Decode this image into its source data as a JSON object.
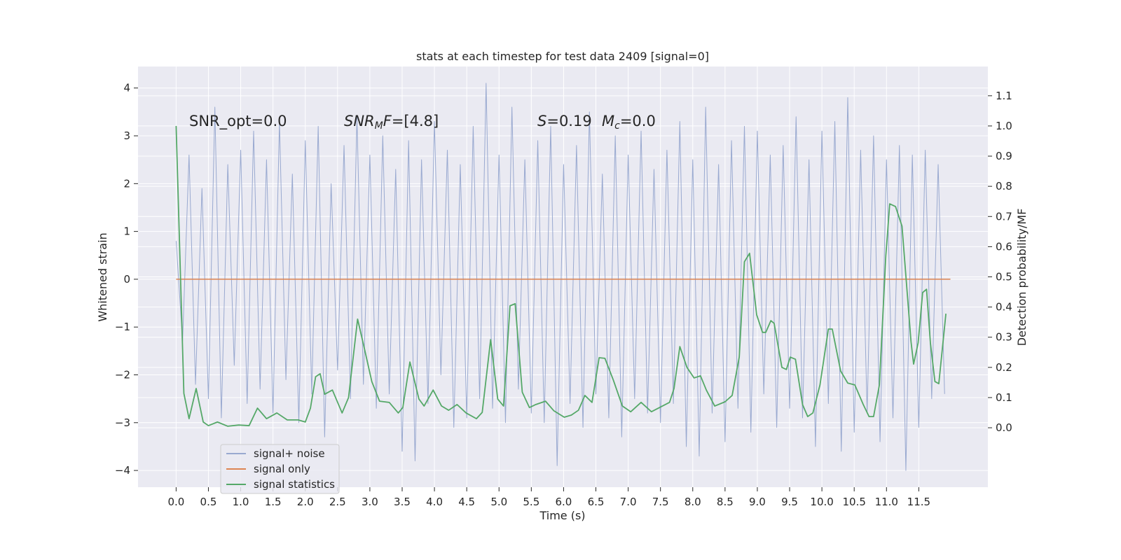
{
  "chart_data": {
    "type": "line",
    "title": "stats at each timestep for test data 2409 [signal=0]",
    "x_label": "Time (s)",
    "y_label": "Whitened strain",
    "y2_label": "Detection probability/MF",
    "xlim": [
      -0.59,
      12.57
    ],
    "ylim": [
      -4.35,
      4.45
    ],
    "y2lim": [
      -0.197,
      1.197
    ],
    "grid": true,
    "legend": "lower left",
    "background": "#eaeaf2",
    "xticks": [
      {
        "value": 0,
        "label": "0.0"
      },
      0.5,
      {
        "value": 1,
        "label": "1.0"
      },
      1.5,
      {
        "value": 2,
        "label": "2.0"
      },
      2.5,
      {
        "value": 3,
        "label": "3.0"
      },
      3.5,
      {
        "value": 4,
        "label": "4.0"
      },
      4.5,
      {
        "value": 5,
        "label": "5.0"
      },
      5.5,
      {
        "value": 6,
        "label": "6.0"
      },
      6.5,
      {
        "value": 7,
        "label": "7.0"
      },
      7.5,
      {
        "value": 8,
        "label": "8.0"
      },
      8.5,
      {
        "value": 9,
        "label": "9.0"
      },
      9.5,
      {
        "value": 10,
        "label": "10.0"
      },
      10.5,
      {
        "value": 11,
        "label": "11.0"
      },
      11.5
    ],
    "yticks": [
      {
        "value": -4,
        "label": "−4"
      },
      {
        "value": -3,
        "label": "−3"
      },
      {
        "value": -2,
        "label": "−2"
      },
      {
        "value": -1,
        "label": "−1"
      },
      0,
      1,
      2,
      3,
      4
    ],
    "y2ticks": [
      {
        "value": 0,
        "label": "0.0"
      },
      0.1,
      0.2,
      0.3,
      0.4,
      0.5,
      0.6,
      0.7,
      0.8,
      0.9,
      {
        "value": 1,
        "label": "1.0"
      },
      1.1
    ],
    "annotations": [
      {
        "parts": [
          {
            "text": "SNR_opt=0.0",
            "style": "normal"
          }
        ]
      },
      {
        "parts": [
          {
            "text": "SNR",
            "style": "italic"
          },
          {
            "text": "M",
            "style": "sub"
          },
          {
            "text": "F",
            "style": "italic"
          },
          {
            "text": "=[4.8]",
            "style": "normal"
          }
        ]
      },
      {
        "parts": [
          {
            "text": "S",
            "style": "italic"
          },
          {
            "text": "=0.19",
            "style": "normal"
          }
        ]
      },
      {
        "parts": [
          {
            "text": "M",
            "style": "italic"
          },
          {
            "text": "c",
            "style": "sub"
          },
          {
            "text": "=0.0",
            "style": "normal"
          }
        ]
      }
    ],
    "series": [
      {
        "name": "signal+ noise",
        "color": "#99a9d0",
        "width": 1,
        "x": [
          0,
          0.1,
          0.2,
          0.3,
          0.4,
          0.5,
          0.6,
          0.7,
          0.8,
          0.9,
          1,
          1.1,
          1.2,
          1.3,
          1.4,
          1.5,
          1.6,
          1.7,
          1.8,
          1.9,
          2,
          2.1,
          2.2,
          2.3,
          2.4,
          2.5,
          2.6,
          2.7,
          2.8,
          2.9,
          3,
          3.1,
          3.2,
          3.3,
          3.4,
          3.5,
          3.6,
          3.7,
          3.8,
          3.9,
          4,
          4.1,
          4.2,
          4.3,
          4.4,
          4.5,
          4.6,
          4.7,
          4.8,
          4.9,
          5,
          5.1,
          5.2,
          5.3,
          5.4,
          5.5,
          5.6,
          5.7,
          5.8,
          5.9,
          6,
          6.1,
          6.2,
          6.3,
          6.4,
          6.5,
          6.6,
          6.7,
          6.8,
          6.9,
          7,
          7.1,
          7.2,
          7.3,
          7.4,
          7.5,
          7.6,
          7.7,
          7.8,
          7.9,
          8,
          8.1,
          8.2,
          8.3,
          8.4,
          8.5,
          8.6,
          8.7,
          8.8,
          8.9,
          9,
          9.1,
          9.2,
          9.3,
          9.4,
          9.5,
          9.6,
          9.7,
          9.8,
          9.9,
          10,
          10.1,
          10.2,
          10.3,
          10.4,
          10.5,
          10.6,
          10.7,
          10.8,
          10.9,
          11,
          11.1,
          11.2,
          11.3,
          11.4,
          11.5,
          11.6,
          11.7,
          11.8,
          11.9
        ],
        "values": [
          0.8,
          -1.3,
          2.6,
          -2.2,
          1.9,
          -2.5,
          3.6,
          -2.9,
          2.4,
          -1.8,
          2.7,
          -2.6,
          3.1,
          -2.3,
          2.5,
          -2.8,
          3.3,
          -2.1,
          2.2,
          -3.0,
          2.9,
          -2.4,
          3.2,
          -3.3,
          2.0,
          -1.9,
          2.8,
          -2.5,
          3.4,
          -2.2,
          2.6,
          -2.7,
          3.0,
          -2.4,
          2.3,
          -3.6,
          2.9,
          -3.8,
          2.5,
          -2.6,
          3.3,
          -2.0,
          2.7,
          -3.1,
          2.4,
          -2.9,
          3.2,
          -2.5,
          4.1,
          -2.7,
          2.6,
          -3.0,
          3.6,
          -2.3,
          2.5,
          -2.8,
          2.9,
          -3.0,
          3.2,
          -3.9,
          2.4,
          -2.6,
          2.8,
          -3.1,
          3.5,
          -2.4,
          2.2,
          -2.9,
          3.0,
          -3.3,
          2.6,
          -2.5,
          3.1,
          -2.8,
          2.3,
          -3.0,
          2.7,
          -2.6,
          3.3,
          -3.5,
          2.5,
          -3.7,
          3.6,
          -2.8,
          2.4,
          -3.4,
          2.9,
          -2.7,
          3.2,
          -3.2,
          3.1,
          -2.4,
          2.6,
          -3.1,
          2.8,
          -2.7,
          3.4,
          -2.9,
          2.5,
          -3.5,
          3.1,
          -2.6,
          3.3,
          -3.6,
          3.8,
          -3.2,
          2.7,
          -2.8,
          3.0,
          -3.4,
          2.5,
          -2.9,
          2.8,
          -4.0,
          2.6,
          -3.1,
          2.7,
          -2.5,
          2.4,
          -2.4
        ]
      },
      {
        "name": "signal only",
        "color": "#dd8452",
        "width": 1.5,
        "x": [
          0,
          11.99
        ],
        "values": [
          0,
          0
        ]
      },
      {
        "name": "signal statistics",
        "color": "#55a868",
        "width": 1.8,
        "axis": "y2",
        "x": [
          0,
          0.12,
          0.2,
          0.31,
          0.42,
          0.5,
          0.64,
          0.8,
          0.97,
          1.13,
          1.26,
          1.4,
          1.56,
          1.72,
          1.89,
          2.0,
          2.08,
          2.16,
          2.23,
          2.3,
          2.42,
          2.57,
          2.67,
          2.81,
          2.92,
          3.03,
          3.15,
          3.3,
          3.44,
          3.51,
          3.62,
          3.76,
          3.84,
          3.98,
          4.11,
          4.22,
          4.35,
          4.49,
          4.65,
          4.74,
          4.87,
          4.98,
          5.07,
          5.17,
          5.25,
          5.36,
          5.47,
          5.57,
          5.72,
          5.85,
          6.01,
          6.12,
          6.23,
          6.33,
          6.44,
          6.55,
          6.64,
          6.77,
          6.91,
          7.04,
          7.2,
          7.36,
          7.53,
          7.64,
          7.71,
          7.8,
          7.91,
          8.02,
          8.12,
          8.21,
          8.34,
          8.5,
          8.61,
          8.72,
          8.8,
          8.88,
          8.99,
          9.08,
          9.13,
          9.21,
          9.26,
          9.38,
          9.45,
          9.51,
          9.59,
          9.7,
          9.78,
          9.86,
          9.97,
          10.1,
          10.16,
          10.29,
          10.4,
          10.51,
          10.64,
          10.73,
          10.8,
          10.89,
          10.99,
          11.05,
          11.14,
          11.24,
          11.38,
          11.42,
          11.49,
          11.56,
          11.62,
          11.68,
          11.75,
          11.81,
          11.92
        ],
        "values": [
          1.0,
          0.114,
          0.03,
          0.13,
          0.019,
          0.007,
          0.019,
          0.005,
          0.009,
          0.007,
          0.065,
          0.03,
          0.049,
          0.026,
          0.026,
          0.019,
          0.065,
          0.169,
          0.179,
          0.111,
          0.125,
          0.049,
          0.1,
          0.36,
          0.258,
          0.153,
          0.088,
          0.084,
          0.049,
          0.067,
          0.218,
          0.095,
          0.072,
          0.125,
          0.072,
          0.058,
          0.077,
          0.049,
          0.03,
          0.051,
          0.292,
          0.095,
          0.072,
          0.404,
          0.411,
          0.118,
          0.067,
          0.077,
          0.088,
          0.056,
          0.035,
          0.042,
          0.058,
          0.107,
          0.084,
          0.232,
          0.23,
          0.158,
          0.072,
          0.053,
          0.084,
          0.053,
          0.072,
          0.084,
          0.13,
          0.269,
          0.2,
          0.165,
          0.172,
          0.125,
          0.072,
          0.086,
          0.107,
          0.234,
          0.55,
          0.578,
          0.374,
          0.316,
          0.316,
          0.355,
          0.346,
          0.2,
          0.193,
          0.234,
          0.227,
          0.077,
          0.037,
          0.049,
          0.142,
          0.327,
          0.327,
          0.188,
          0.148,
          0.142,
          0.077,
          0.037,
          0.037,
          0.142,
          0.571,
          0.742,
          0.733,
          0.668,
          0.285,
          0.211,
          0.281,
          0.448,
          0.459,
          0.281,
          0.153,
          0.146,
          0.378
        ]
      }
    ]
  }
}
